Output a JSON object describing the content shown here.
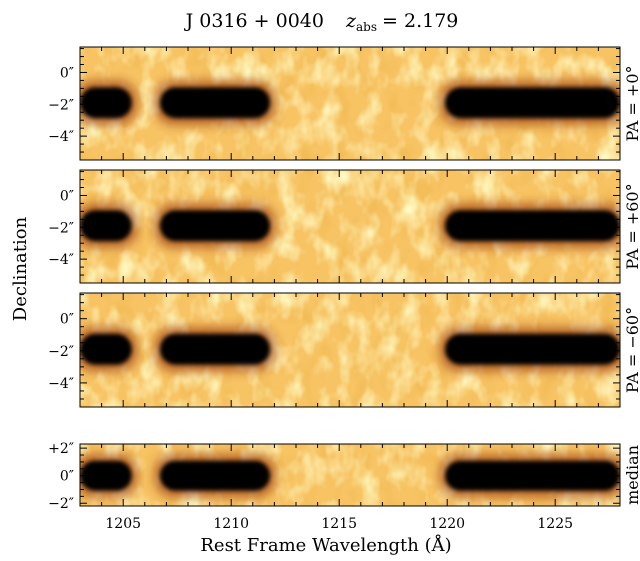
{
  "chart_data": {
    "type": "heatmap",
    "title": "J 0316 + 0040    z_abs = 2.179",
    "title_parts": {
      "object": "J 0316 + 0040",
      "z_sym": "z",
      "z_sub": "abs",
      "z_value": "= 2.179"
    },
    "xlabel": "Rest Frame Wavelength    (Å)",
    "ylabel": "Declination",
    "xlim": [
      1203.0,
      1228.0
    ],
    "x_major_ticks": [
      1205,
      1210,
      1215,
      1220,
      1225
    ],
    "x_tick_labels": [
      "1205",
      "1210",
      "1215",
      "1220",
      "1225"
    ],
    "colormap": "afmhot (black → dark red → orange → pale yellow)",
    "colors": {
      "high": "#fff8b0",
      "mid": "#f5b047",
      "low": "#000000",
      "rim": "#8a2200"
    },
    "emission_bands": [
      {
        "x_start": 1203.0,
        "x_end": 1205.4,
        "row_center_arcsec": -1.9
      },
      {
        "x_start": 1206.7,
        "x_end": 1211.8,
        "row_center_arcsec": -1.9
      },
      {
        "x_start": 1219.9,
        "x_end": 1228.0,
        "row_center_arcsec": -1.9
      }
    ],
    "panels": [
      {
        "label": "PA = +0°",
        "ylim": [
          -5.5,
          1.6
        ],
        "y_ticks": [
          0,
          -2,
          -4
        ],
        "y_tick_labels": [
          "0″",
          "−2″",
          "−4″"
        ],
        "trace_center": -1.9
      },
      {
        "label": "PA = +60°",
        "ylim": [
          -5.5,
          1.6
        ],
        "y_ticks": [
          0,
          -2,
          -4
        ],
        "y_tick_labels": [
          "0″",
          "−2″",
          "−4″"
        ],
        "trace_center": -1.9
      },
      {
        "label": "PA = −60°",
        "ylim": [
          -5.5,
          1.6
        ],
        "y_ticks": [
          0,
          -2,
          -4
        ],
        "y_tick_labels": [
          "0″",
          "−2″",
          "−4″"
        ],
        "trace_center": -1.9
      },
      {
        "label": "median",
        "ylim": [
          -2.2,
          2.3
        ],
        "y_ticks": [
          2,
          0,
          -2
        ],
        "y_tick_labels": [
          "+2″",
          "0″",
          "−2″"
        ],
        "trace_center": 0.0
      }
    ]
  }
}
